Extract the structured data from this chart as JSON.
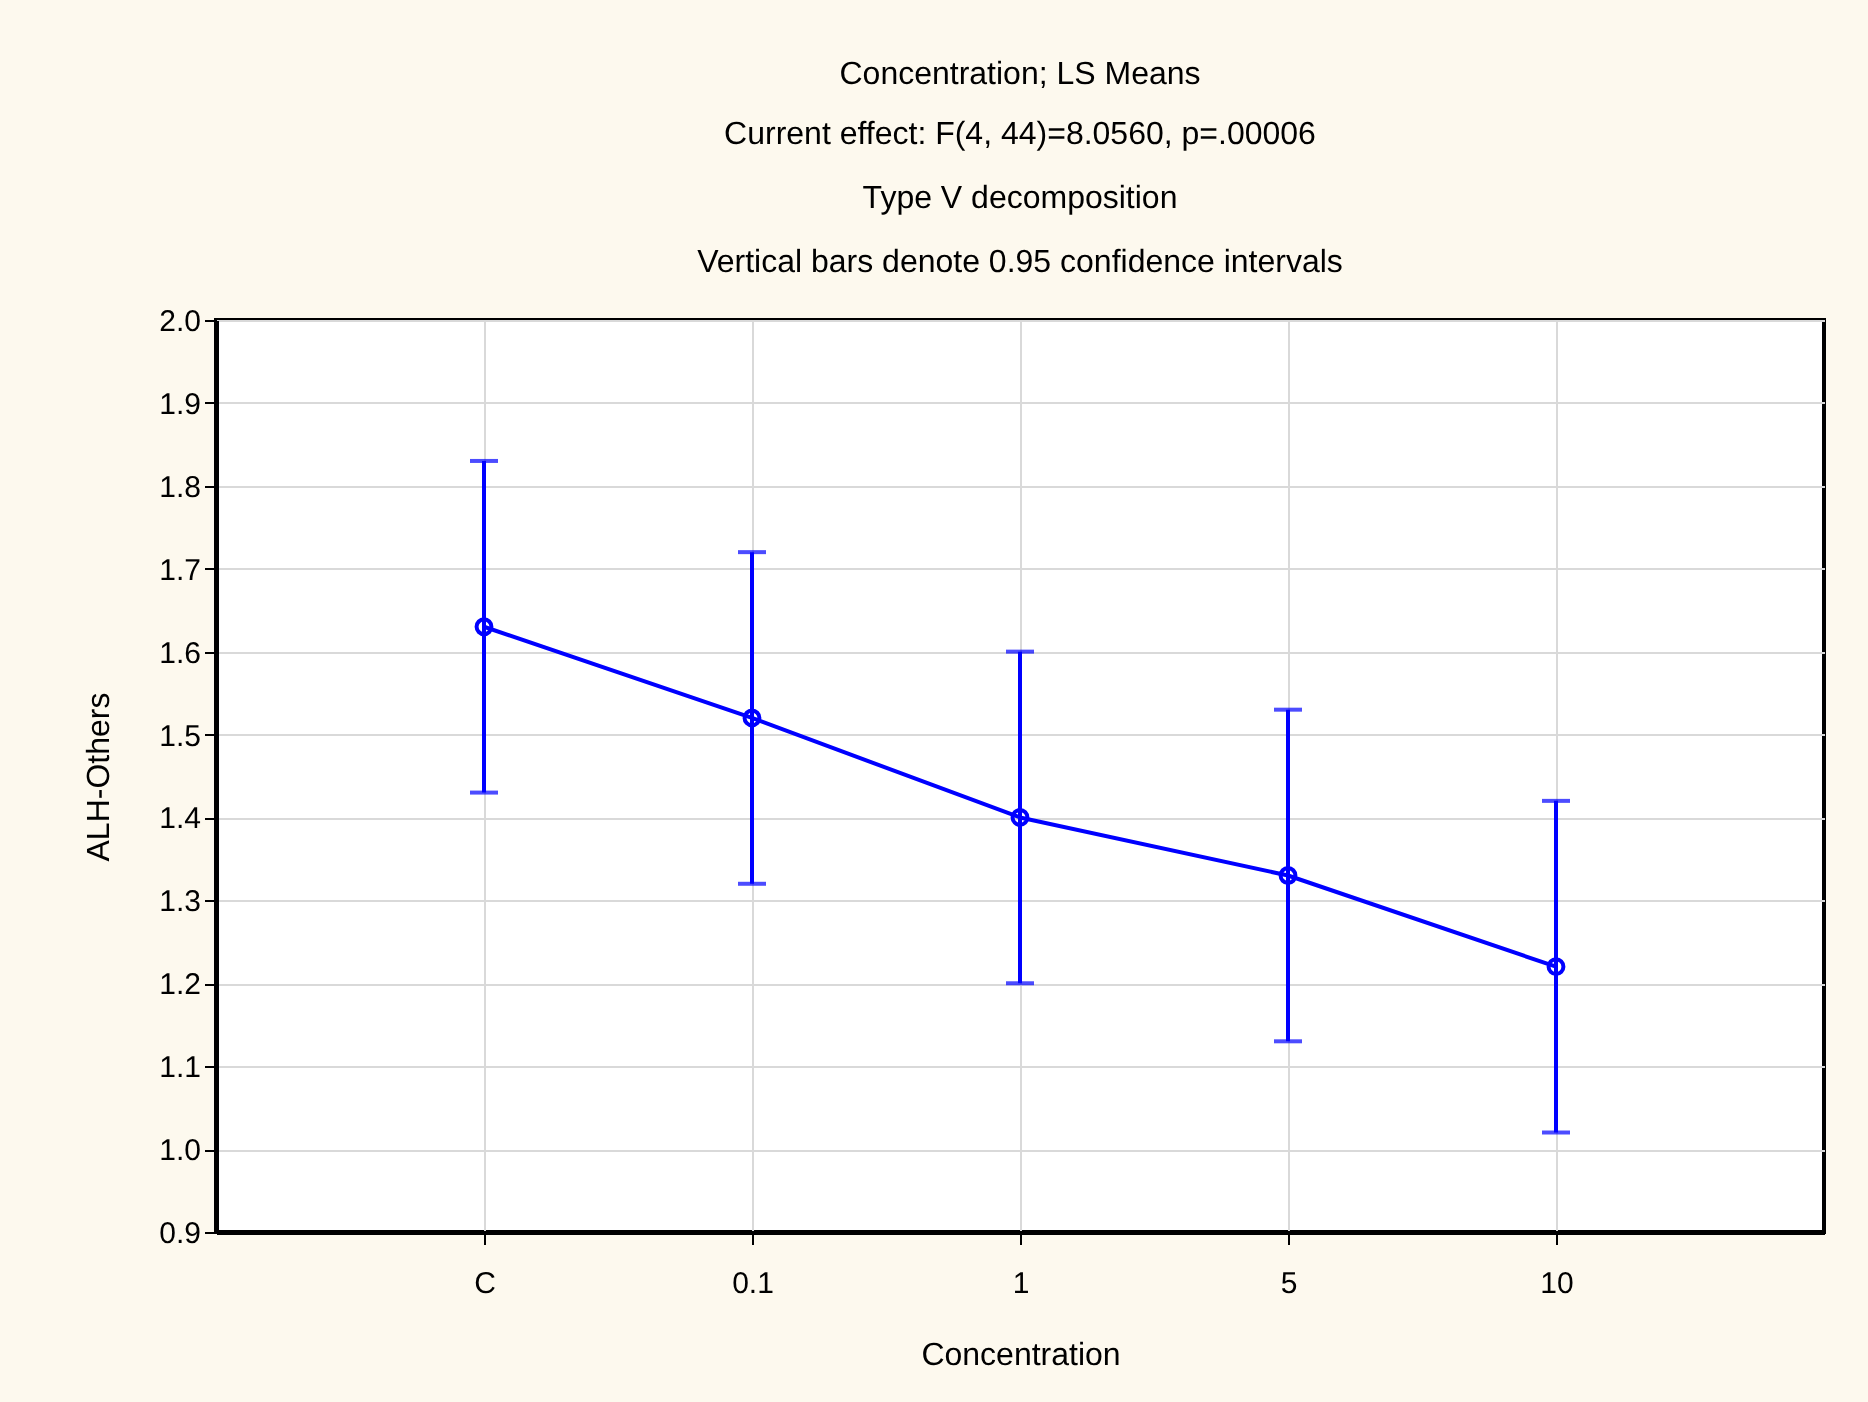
{
  "chart_data": {
    "type": "line",
    "title": "Concentration; LS Means",
    "subtitle": "Current effect: F(4, 44)=8.0560, p=.00006",
    "annotations": [
      "Type V decomposition",
      "Vertical bars denote 0.95 confidence intervals"
    ],
    "xlabel": "Concentration",
    "ylabel": "ALH-Others",
    "categories": [
      "C",
      "0.1",
      "1",
      "5",
      "10"
    ],
    "series": [
      {
        "color": "#0000ff",
        "values": [
          1.63,
          1.52,
          1.4,
          1.33,
          1.22
        ],
        "errors": [
          0.2,
          0.2,
          0.2,
          0.2,
          0.2
        ]
      }
    ],
    "ylim": [
      0.9,
      2.0
    ],
    "yticks": [
      0.9,
      {
        "value": 1,
        "label": "1.0"
      },
      1.1,
      1.2,
      1.3,
      1.4,
      1.5,
      1.6,
      1.7,
      1.8,
      1.9,
      {
        "value": 2,
        "label": "2.0"
      }
    ],
    "grid": true,
    "marker": "circle",
    "line_style": "solid"
  }
}
